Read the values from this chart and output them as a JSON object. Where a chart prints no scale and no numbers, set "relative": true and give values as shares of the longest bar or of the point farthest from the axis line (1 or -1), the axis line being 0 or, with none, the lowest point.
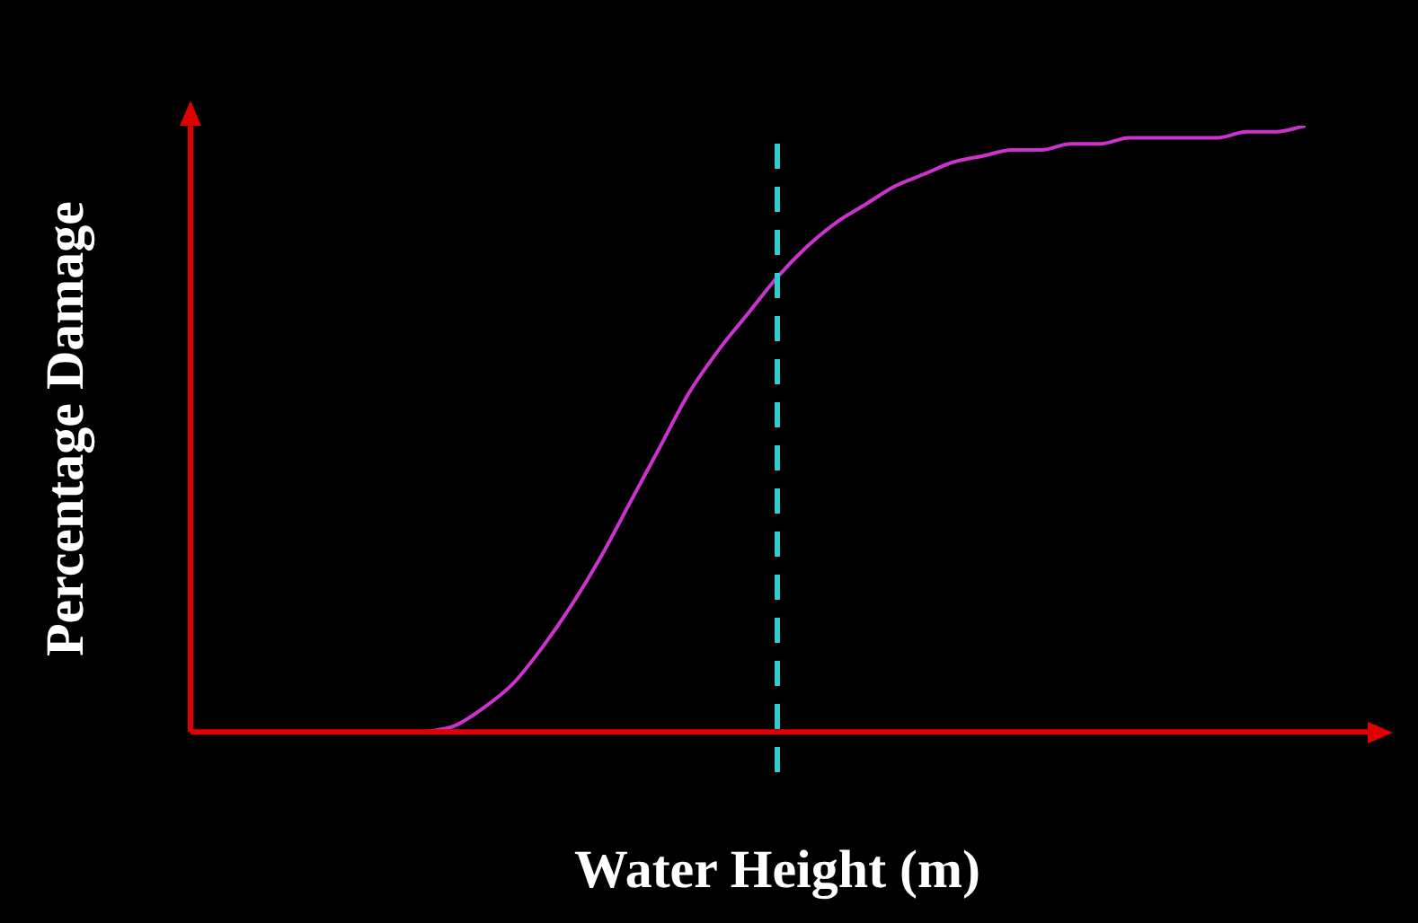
{
  "chart_data": {
    "type": "line",
    "relative": true,
    "xlabel": "Water Height (m)",
    "ylabel": "Percentage Damage",
    "categories": [
      null,
      null,
      null,
      null,
      null,
      null,
      null,
      null,
      null,
      null,
      null,
      null,
      null,
      null,
      null,
      null,
      null,
      null,
      null,
      null,
      null,
      null,
      null,
      null,
      null,
      null,
      null,
      null,
      null,
      null,
      null,
      null,
      null,
      null,
      null,
      null,
      null,
      null,
      null,
      null,
      null
    ],
    "series": [
      {
        "color": "#cc33cc",
        "values": [
          null,
          null,
          null,
          null,
          null,
          null,
          null,
          null,
          0,
          0.01,
          0.04,
          0.08,
          0.14,
          0.21,
          0.29,
          0.38,
          0.47,
          0.56,
          0.63,
          0.69,
          0.75,
          0.8,
          0.84,
          0.87,
          0.9,
          0.92,
          0.94,
          0.95,
          0.96,
          0.96,
          0.97,
          0.97,
          0.98,
          0.98,
          0.98,
          0.98,
          0.99,
          0.99,
          1,
          null,
          null
        ]
      }
    ],
    "marker": "none",
    "line_style": "solid"
  }
}
